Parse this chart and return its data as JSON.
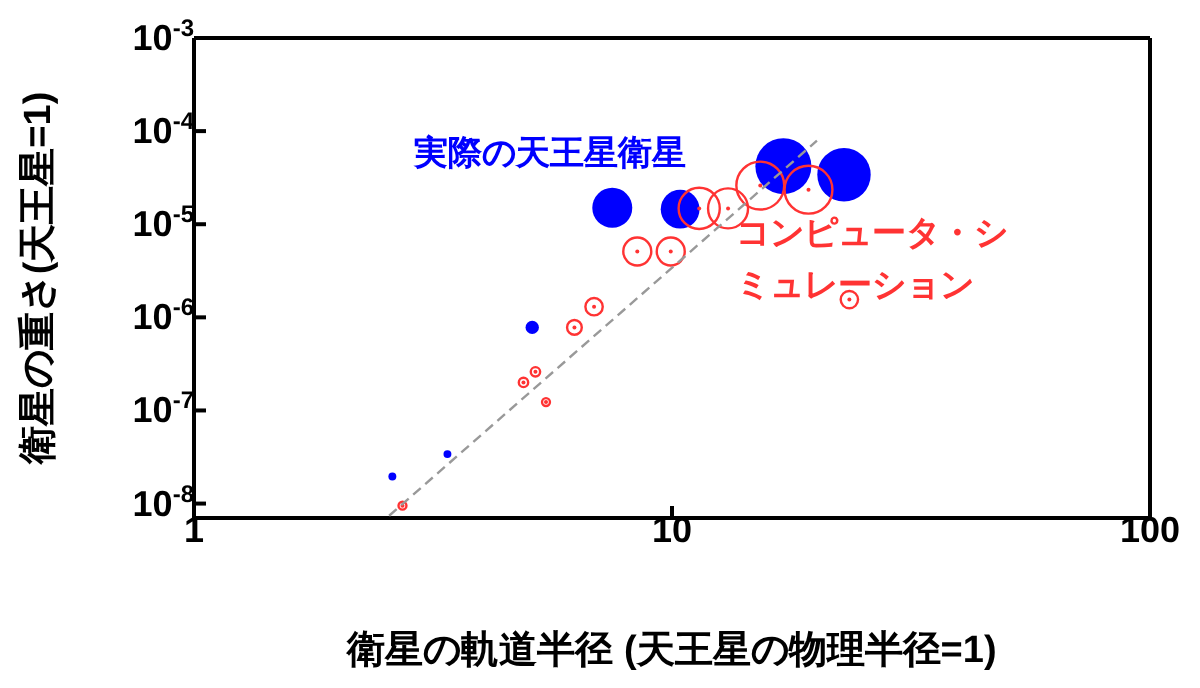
{
  "chart_data": {
    "type": "bubble",
    "xlabel": "衛星の軌道半径 (天王星の物理半径=1)",
    "ylabel": "衛星の重さ(天王星=1)",
    "log": "xy",
    "xlim": [
      1,
      100
    ],
    "xticks": [
      1,
      10,
      100
    ],
    "ylim": [
      7e-09,
      0.001
    ],
    "yticks": [
      {
        "value": 1e-08,
        "label": "10$^{-8}$"
      },
      {
        "value": 1e-07,
        "label": "10$^{-7}$"
      },
      {
        "value": 1e-06,
        "label": "10$^{-6}$"
      },
      {
        "value": 1e-05,
        "label": "10$^{-5}$"
      },
      {
        "value": 0.0001,
        "label": "10$^{-4}$"
      },
      {
        "value": 0.001,
        "label": "10$^{-3}$"
      }
    ],
    "series": [
      {
        "name": "実際の天王星衛星",
        "color": "#0000ff",
        "x": [
          7.5,
          10.4,
          17.1,
          22.9,
          5.1,
          3.39,
          2.6
        ],
        "values": [
          1.5e-05,
          1.45e-05,
          4.2e-05,
          3.4e-05,
          7.8e-07,
          3.4e-08,
          1.95e-08
        ],
        "sizes": [
          0.51,
          0.48,
          1,
          0.91,
          0.057,
          0.02,
          0.02
        ]
      },
      {
        "name": "コンピュータ・シミュレーション",
        "color": "#ff3333",
        "x": [
          11.4,
          13.1,
          15.3,
          19.3,
          8.46,
          9.94,
          6.87,
          6.25,
          23.5,
          5.18,
          4.89,
          5.45,
          2.73
        ],
        "values": [
          1.48e-05,
          1.48e-05,
          2.6e-05,
          2.35e-05,
          5.1e-06,
          5.1e-06,
          1.3e-06,
          7.8e-07,
          1.55e-06,
          2.6e-07,
          2e-07,
          1.23e-07,
          9.5e-09
        ],
        "sizes": [
          0.54,
          0.51,
          0.73,
          0.73,
          0.25,
          0.25,
          0.096,
          0.069,
          0.096,
          0.028,
          0.028,
          0.02,
          0.02
        ]
      },
      {
        "type": "line",
        "color": "#999999",
        "x": [
          2.56,
          20.1
        ],
        "values": [
          7.4e-09,
          7.9e-05
        ],
        "line_style": "dashed",
        "marker": "none"
      }
    ]
  }
}
